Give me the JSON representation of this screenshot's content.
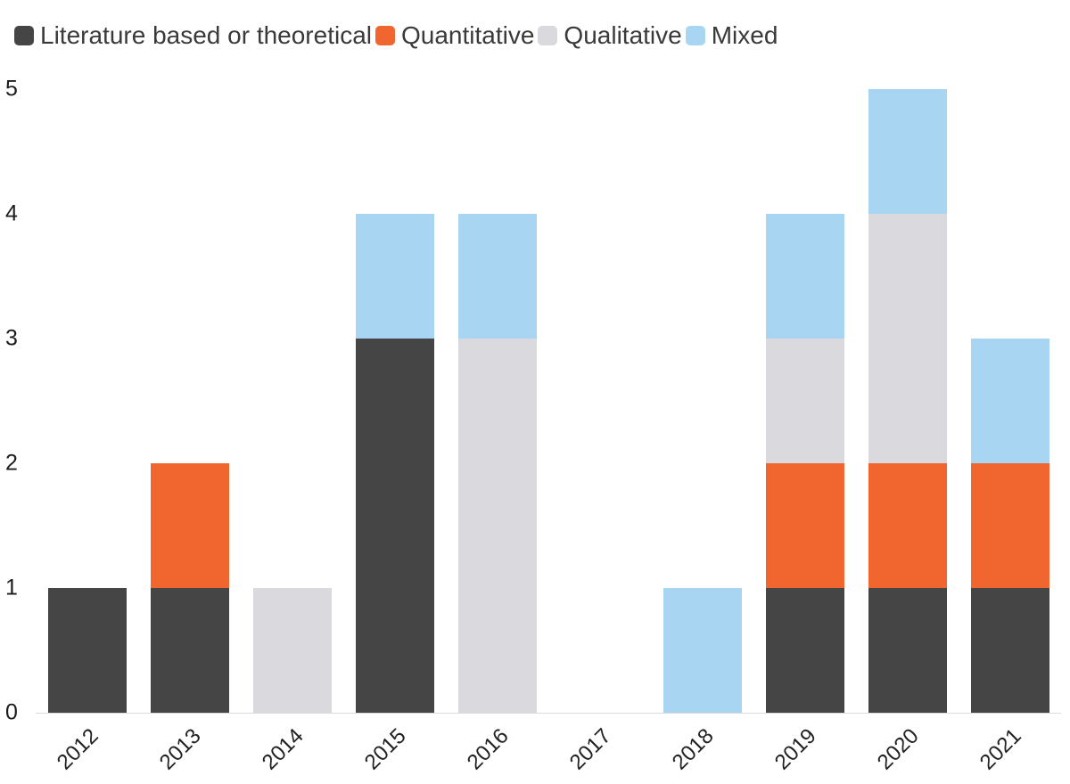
{
  "chart_data": {
    "type": "bar",
    "stacked": true,
    "title": "",
    "xlabel": "",
    "ylabel": "",
    "categories": [
      "2012",
      "2013",
      "2014",
      "2015",
      "2016",
      "2017",
      "2018",
      "2019",
      "2020",
      "2021"
    ],
    "series": [
      {
        "name": "Literature based or theoretical",
        "color": "#454545",
        "values": [
          1,
          1,
          0,
          3,
          0,
          0,
          0,
          1,
          1,
          1
        ]
      },
      {
        "name": "Quantitative",
        "color": "#f0662e",
        "values": [
          0,
          1,
          0,
          0,
          0,
          0,
          0,
          1,
          1,
          1
        ]
      },
      {
        "name": "Qualitative",
        "color": "#d9d9de",
        "values": [
          0,
          0,
          1,
          0,
          3,
          0,
          0,
          1,
          2,
          0
        ]
      },
      {
        "name": "Mixed",
        "color": "#a7d5f2",
        "values": [
          0,
          0,
          0,
          1,
          1,
          0,
          1,
          1,
          1,
          1
        ]
      }
    ],
    "ylim": [
      0,
      5
    ],
    "yticks": [
      0,
      1,
      2,
      3,
      4,
      5
    ],
    "grid": false,
    "legend_position": "top-left",
    "background_color": "#ffffff"
  }
}
